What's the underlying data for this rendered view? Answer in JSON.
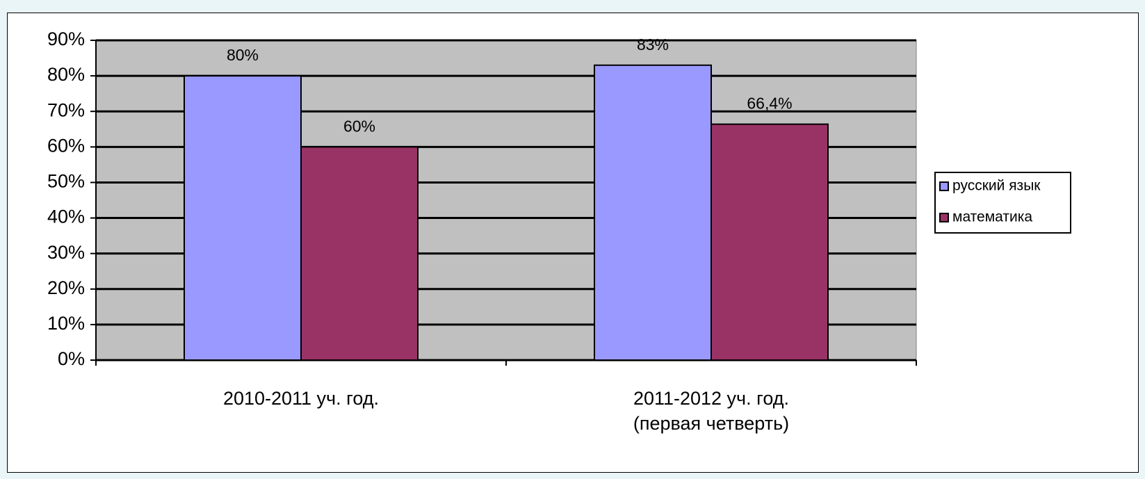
{
  "chart_data": {
    "type": "bar",
    "categories": [
      "2010-2011 уч. год.",
      "2011-2012 уч. год.\n(первая четверть)"
    ],
    "series": [
      {
        "name": "русский язык",
        "color": "#9999ff",
        "values": [
          80,
          83
        ],
        "value_labels": [
          "80%",
          "83%"
        ]
      },
      {
        "name": "математика",
        "color": "#993366",
        "values": [
          60,
          66.4
        ],
        "value_labels": [
          "60%",
          "66,4%"
        ]
      }
    ],
    "ylim": [
      0,
      90
    ],
    "yticks": [
      {
        "value": 0,
        "label": "0%"
      },
      {
        "value": 10,
        "label": "10%"
      },
      {
        "value": 20,
        "label": "20%"
      },
      {
        "value": 30,
        "label": "30%"
      },
      {
        "value": 40,
        "label": "40%"
      },
      {
        "value": 50,
        "label": "50%"
      },
      {
        "value": 60,
        "label": "60%"
      },
      {
        "value": 70,
        "label": "70%"
      },
      {
        "value": 80,
        "label": "80%"
      },
      {
        "value": 90,
        "label": "90%"
      }
    ],
    "grid": true,
    "legend": "right"
  }
}
